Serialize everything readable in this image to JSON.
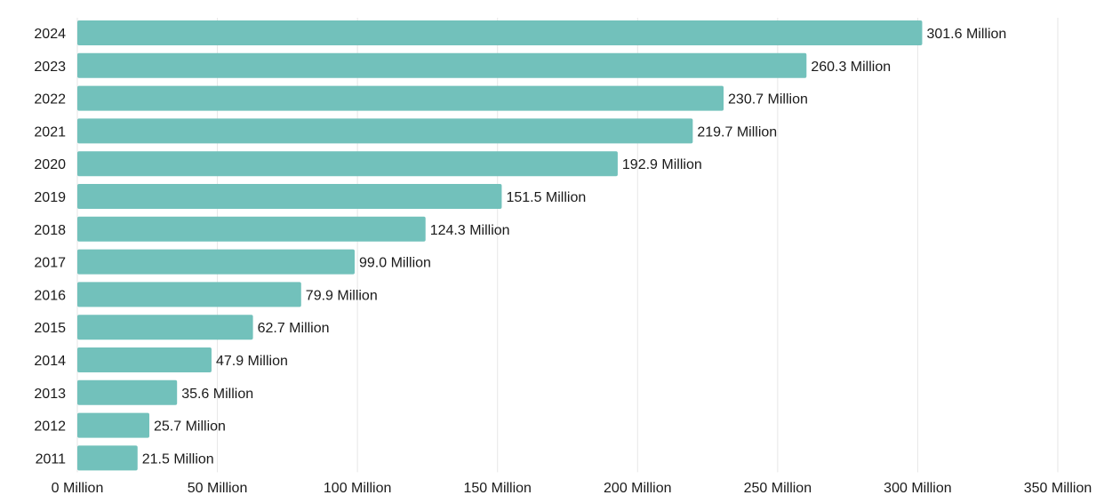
{
  "chart_data": {
    "type": "bar",
    "orientation": "horizontal",
    "categories": [
      "2024",
      "2023",
      "2022",
      "2021",
      "2020",
      "2019",
      "2018",
      "2017",
      "2016",
      "2015",
      "2014",
      "2013",
      "2012",
      "2011"
    ],
    "values": [
      301.6,
      260.3,
      230.7,
      219.7,
      192.9,
      151.5,
      124.3,
      99.0,
      79.9,
      62.7,
      47.9,
      35.6,
      25.7,
      21.5
    ],
    "data_labels": [
      "301.6 Million",
      "260.3 Million",
      "230.7 Million",
      "219.7 Million",
      "192.9 Million",
      "151.5 Million",
      "124.3 Million",
      "99.0 Million",
      "79.9 Million",
      "62.7 Million",
      "47.9 Million",
      "35.6 Million",
      "25.7 Million",
      "21.5 Million"
    ],
    "x_ticks": [
      0,
      50,
      100,
      150,
      200,
      250,
      300,
      350
    ],
    "x_tick_labels": [
      "0 Million",
      "50 Million",
      "100 Million",
      "150 Million",
      "200 Million",
      "250 Million",
      "300 Million",
      "350 Million"
    ],
    "xlim": [
      0,
      350
    ],
    "title": "",
    "xlabel": "",
    "ylabel": "",
    "grid": "vertical",
    "legend": "none",
    "bar_color": "#72c1bb",
    "grid_color": "#e6e6e6"
  }
}
